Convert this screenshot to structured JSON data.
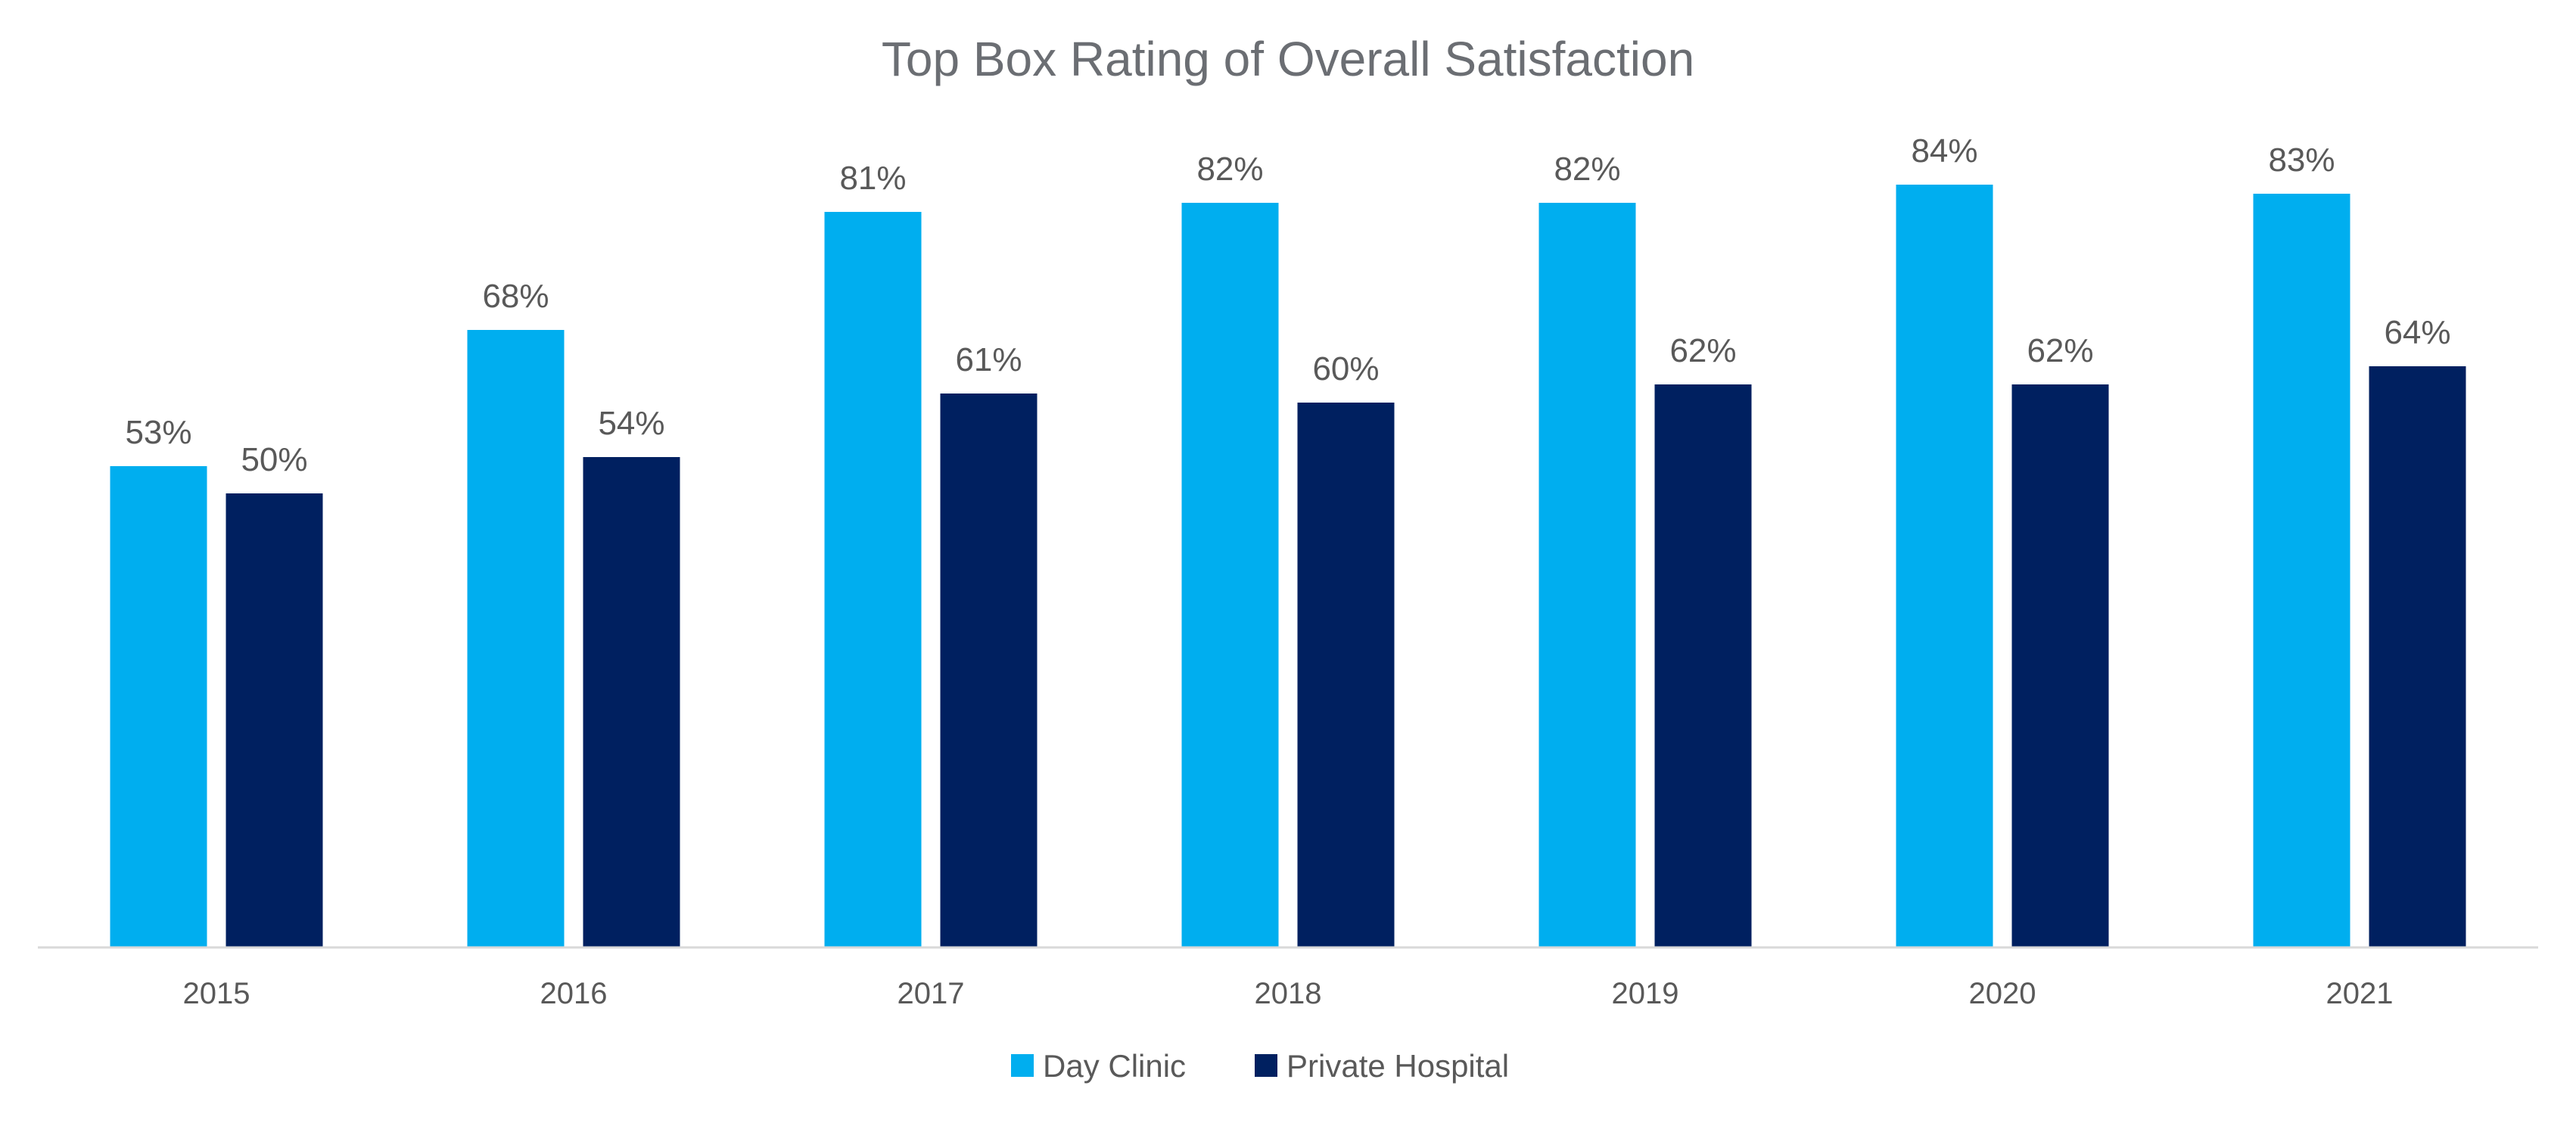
{
  "chart_data": {
    "type": "bar",
    "title": "Top Box Rating of Overall Satisfaction",
    "xlabel": "",
    "ylabel": "",
    "ylim": [
      0,
      100
    ],
    "grid": false,
    "legend_position": "bottom",
    "categories": [
      "2015",
      "2016",
      "2017",
      "2018",
      "2019",
      "2020",
      "2021"
    ],
    "series": [
      {
        "name": "Day Clinic",
        "color": "#00aeef",
        "values": [
          53,
          68,
          81,
          82,
          82,
          84,
          83
        ],
        "labels": [
          "53%",
          "68%",
          "81%",
          "82%",
          "82%",
          "84%",
          "83%"
        ]
      },
      {
        "name": "Private Hospital",
        "color": "#002060",
        "values": [
          50,
          54,
          61,
          60,
          62,
          62,
          64
        ],
        "labels": [
          "50%",
          "54%",
          "61%",
          "60%",
          "62%",
          "62%",
          "64%"
        ]
      }
    ]
  }
}
